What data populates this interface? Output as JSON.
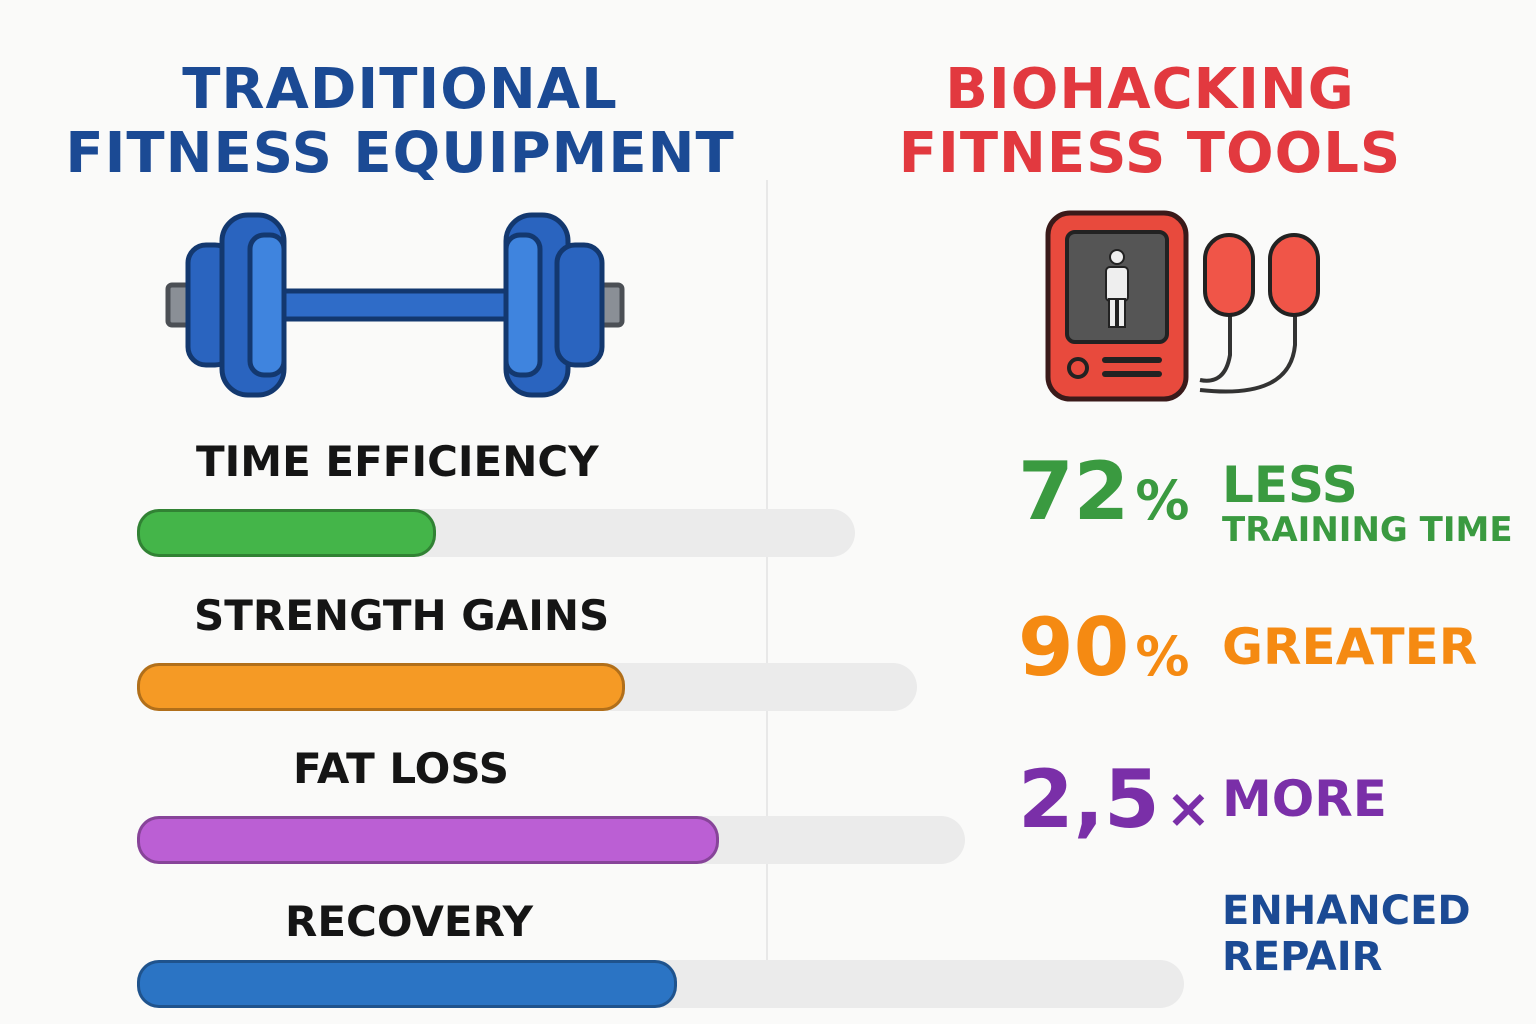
{
  "left_title": [
    "TRADITIONAL",
    "FITNESS EQUIPMENT"
  ],
  "right_title": [
    "BIOHACKING",
    "FITNESS TOOLS"
  ],
  "icons": [
    "dumbbell-icon",
    "ems-device-icon"
  ],
  "metrics": [
    {
      "label": "TIME EFFICIENCY",
      "progress": 0.28,
      "color": "#44b549"
    },
    {
      "label": "STRENGTH GAINS",
      "progress": 0.46,
      "color": "#f59a25"
    },
    {
      "label": "FAT LOSS",
      "progress": 0.55,
      "color": "#bb5fd4"
    },
    {
      "label": "RECOVERY",
      "progress": 0.51,
      "color": "#2b74c4"
    }
  ],
  "stats": [
    {
      "value": "72",
      "unit": "%",
      "line1": "LESS",
      "line2": "TRAINING TIME",
      "color": "#3a9a40"
    },
    {
      "value": "90",
      "unit": "%",
      "line1": "GREATER",
      "color": "#f58a12"
    },
    {
      "value": "2,5",
      "unit": "×",
      "line1": "MORE",
      "color": "#7a2fa8"
    },
    {
      "line1": "ENHANCED",
      "line2": "REPAIR",
      "color": "#1b4a94"
    }
  ],
  "colors": {
    "left_title": "#1b4a94",
    "right_title": "#e2393f",
    "track": "#ebebeb",
    "dumbbell_blue": "#2860b8",
    "device_red": "#e84a3d"
  }
}
